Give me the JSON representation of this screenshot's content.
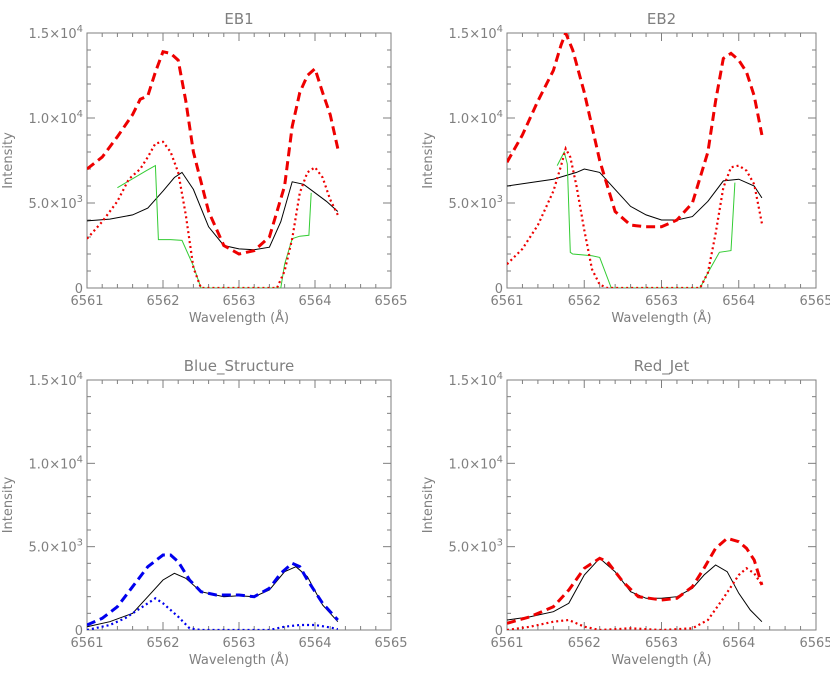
{
  "chart_data": [
    {
      "type": "line",
      "title": "EB1",
      "xlabel": "Wavelength (Å)",
      "ylabel": "Intensity",
      "xlim": [
        6561,
        6565
      ],
      "ylim": [
        0,
        15000
      ],
      "x_ticks": [
        "6561",
        "6562",
        "6563",
        "6564",
        "6565"
      ],
      "y_ticks": [
        {
          "value": 0,
          "mantissa": "0",
          "exponent": ""
        },
        {
          "value": 5000,
          "mantissa": "5.0×10",
          "exponent": "3"
        },
        {
          "value": 10000,
          "mantissa": "1.0×10",
          "exponent": "4"
        },
        {
          "value": 15000,
          "mantissa": "1.5×10",
          "exponent": "4"
        }
      ],
      "series": [
        {
          "style": "black-solid",
          "color": "#000000",
          "x": [
            6561.0,
            6561.3,
            6561.6,
            6561.8,
            6562.0,
            6562.15,
            6562.25,
            6562.4,
            6562.6,
            6562.8,
            6563.0,
            6563.2,
            6563.4,
            6563.55,
            6563.7,
            6563.85,
            6564.0,
            6564.15,
            6564.3
          ],
          "y": [
            3950,
            4050,
            4300,
            4700,
            5700,
            6500,
            6800,
            5800,
            3600,
            2500,
            2300,
            2250,
            2400,
            3900,
            6250,
            6100,
            5600,
            5100,
            4500
          ]
        },
        {
          "style": "green-solid",
          "color": "#33cc33",
          "x": [
            6561.4,
            6561.78,
            6561.9,
            6561.94,
            6561.97,
            6562.1,
            6562.25,
            6562.4,
            6562.5,
            6563.55,
            6563.6,
            6563.7,
            6563.8,
            6563.92,
            6563.95
          ],
          "y": [
            5900,
            6900,
            7200,
            2850,
            2850,
            2850,
            2800,
            1300,
            0,
            0,
            1400,
            2900,
            3050,
            3100,
            5600
          ]
        },
        {
          "style": "red-dashed",
          "color": "#ee0000",
          "x": [
            6561.0,
            6561.2,
            6561.4,
            6561.6,
            6561.7,
            6561.8,
            6561.9,
            6562.0,
            6562.1,
            6562.2,
            6562.3,
            6562.4,
            6562.6,
            6562.8,
            6563.0,
            6563.2,
            6563.4,
            6563.6,
            6563.7,
            6563.8,
            6563.9,
            6564.0,
            6564.1,
            6564.2,
            6564.3
          ],
          "y": [
            7000,
            7700,
            8900,
            10200,
            11100,
            11300,
            12700,
            13900,
            13800,
            13400,
            11000,
            8000,
            4500,
            2500,
            2000,
            2200,
            3000,
            6000,
            9500,
            11500,
            12500,
            12900,
            11500,
            10200,
            8200
          ]
        },
        {
          "style": "red-dotted",
          "color": "#ee0000",
          "x": [
            6561.0,
            6561.2,
            6561.4,
            6561.55,
            6561.7,
            6561.8,
            6561.9,
            6562.0,
            6562.1,
            6562.2,
            6562.3,
            6562.4,
            6562.5,
            6563.5,
            6563.6,
            6563.7,
            6563.8,
            6563.9,
            6564.0,
            6564.1,
            6564.2,
            6564.3
          ],
          "y": [
            2900,
            3900,
            5100,
            6400,
            7000,
            7700,
            8500,
            8600,
            8000,
            6800,
            4300,
            1200,
            0,
            0,
            1000,
            2900,
            5600,
            6800,
            7100,
            6500,
            5200,
            4300
          ]
        }
      ]
    },
    {
      "type": "line",
      "title": "EB2",
      "xlabel": "Wavelength (Å)",
      "ylabel": "Intensity",
      "xlim": [
        6561,
        6565
      ],
      "ylim": [
        0,
        15000
      ],
      "x_ticks": [
        "6561",
        "6562",
        "6563",
        "6564",
        "6565"
      ],
      "y_ticks": [
        {
          "value": 0,
          "mantissa": "0",
          "exponent": ""
        },
        {
          "value": 5000,
          "mantissa": "5.0×10",
          "exponent": "3"
        },
        {
          "value": 10000,
          "mantissa": "1.0×10",
          "exponent": "4"
        },
        {
          "value": 15000,
          "mantissa": "1.5×10",
          "exponent": "4"
        }
      ],
      "series": [
        {
          "style": "black-solid",
          "color": "#000000",
          "x": [
            6561.0,
            6561.3,
            6561.6,
            6561.9,
            6562.0,
            6562.2,
            6562.4,
            6562.6,
            6562.8,
            6563.0,
            6563.2,
            6563.4,
            6563.6,
            6563.8,
            6564.0,
            6564.2,
            6564.3
          ],
          "y": [
            6000,
            6200,
            6400,
            6800,
            7000,
            6800,
            5800,
            4800,
            4300,
            4000,
            4000,
            4200,
            5100,
            6300,
            6400,
            6000,
            5300
          ]
        },
        {
          "style": "green-solid",
          "color": "#33cc33",
          "x": [
            6561.65,
            6561.74,
            6561.78,
            6561.82,
            6561.85,
            6562.1,
            6562.2,
            6562.35,
            6563.5,
            6563.6,
            6563.75,
            6563.9,
            6563.95
          ],
          "y": [
            7200,
            8000,
            7300,
            2100,
            2000,
            1900,
            1800,
            0,
            0,
            900,
            2100,
            2200,
            6200
          ]
        },
        {
          "style": "red-dashed",
          "color": "#ee0000",
          "x": [
            6561.0,
            6561.2,
            6561.4,
            6561.6,
            6561.7,
            6561.76,
            6561.85,
            6562.0,
            6562.2,
            6562.4,
            6562.6,
            6562.8,
            6563.0,
            6563.2,
            6563.4,
            6563.6,
            6563.7,
            6563.8,
            6563.9,
            6564.0,
            6564.1,
            6564.2,
            6564.3
          ],
          "y": [
            7400,
            9000,
            11000,
            12800,
            14300,
            15000,
            14000,
            11500,
            7500,
            4500,
            3700,
            3600,
            3600,
            4000,
            5000,
            8000,
            11000,
            13500,
            13800,
            13400,
            12700,
            11300,
            9000
          ]
        },
        {
          "style": "red-dotted",
          "color": "#ee0000",
          "x": [
            6561.0,
            6561.2,
            6561.4,
            6561.6,
            6561.7,
            6561.76,
            6561.82,
            6561.9,
            6562.0,
            6562.1,
            6562.2,
            6562.3,
            6563.5,
            6563.6,
            6563.7,
            6563.8,
            6563.9,
            6564.0,
            6564.1,
            6564.2,
            6564.3
          ],
          "y": [
            1400,
            2300,
            3700,
            5700,
            7200,
            8200,
            7700,
            6000,
            3400,
            1100,
            200,
            0,
            0,
            900,
            3200,
            5900,
            7100,
            7200,
            6900,
            6100,
            3800
          ]
        }
      ]
    },
    {
      "type": "line",
      "title": "Blue_Structure",
      "xlabel": "Wavelength (Å)",
      "ylabel": "Intensity",
      "xlim": [
        6561,
        6565
      ],
      "ylim": [
        0,
        15000
      ],
      "x_ticks": [
        "6561",
        "6562",
        "6563",
        "6564",
        "6565"
      ],
      "y_ticks": [
        {
          "value": 0,
          "mantissa": "0",
          "exponent": ""
        },
        {
          "value": 5000,
          "mantissa": "5.0×10",
          "exponent": "3"
        },
        {
          "value": 10000,
          "mantissa": "1.0×10",
          "exponent": "4"
        },
        {
          "value": 15000,
          "mantissa": "1.5×10",
          "exponent": "4"
        }
      ],
      "series": [
        {
          "style": "black-solid",
          "color": "#000000",
          "x": [
            6561.0,
            6561.3,
            6561.6,
            6561.8,
            6562.0,
            6562.15,
            6562.3,
            6562.5,
            6562.8,
            6563.0,
            6563.2,
            6563.4,
            6563.6,
            6563.75,
            6563.9,
            6564.1,
            6564.3
          ],
          "y": [
            200,
            500,
            1000,
            2000,
            3000,
            3400,
            3100,
            2300,
            2000,
            2050,
            2000,
            2400,
            3500,
            3800,
            3200,
            1500,
            500
          ]
        },
        {
          "style": "blue-dashed",
          "color": "#0000ee",
          "x": [
            6561.0,
            6561.2,
            6561.4,
            6561.6,
            6561.8,
            6562.0,
            6562.1,
            6562.2,
            6562.35,
            6562.5,
            6562.7,
            6563.0,
            6563.2,
            6563.4,
            6563.55,
            6563.7,
            6563.8,
            6563.9,
            6564.1,
            6564.3
          ],
          "y": [
            300,
            700,
            1400,
            2600,
            3800,
            4500,
            4500,
            4100,
            3000,
            2300,
            2100,
            2100,
            2000,
            2500,
            3400,
            4000,
            3800,
            3000,
            1600,
            600
          ]
        },
        {
          "style": "blue-dotted",
          "color": "#0000ee",
          "x": [
            6561.0,
            6561.3,
            6561.5,
            6561.7,
            6561.9,
            6562.0,
            6562.2,
            6562.35,
            6562.5,
            6563.4,
            6563.6,
            6563.8,
            6564.0,
            6564.2,
            6564.3
          ],
          "y": [
            0,
            300,
            700,
            1300,
            1900,
            1600,
            800,
            100,
            0,
            0,
            200,
            300,
            300,
            150,
            50
          ]
        }
      ]
    },
    {
      "type": "line",
      "title": "Red_Jet",
      "xlabel": "Wavelength (Å)",
      "ylabel": "Intensity",
      "xlim": [
        6561,
        6565
      ],
      "ylim": [
        0,
        15000
      ],
      "x_ticks": [
        "6561",
        "6562",
        "6563",
        "6564",
        "6565"
      ],
      "y_ticks": [
        {
          "value": 0,
          "mantissa": "0",
          "exponent": ""
        },
        {
          "value": 5000,
          "mantissa": "5.0×10",
          "exponent": "3"
        },
        {
          "value": 10000,
          "mantissa": "1.0×10",
          "exponent": "4"
        },
        {
          "value": 15000,
          "mantissa": "1.5×10",
          "exponent": "4"
        }
      ],
      "series": [
        {
          "style": "black-solid",
          "color": "#000000",
          "x": [
            6561.0,
            6561.3,
            6561.6,
            6561.8,
            6562.0,
            6562.2,
            6562.4,
            6562.6,
            6562.8,
            6563.0,
            6563.2,
            6563.4,
            6563.55,
            6563.7,
            6563.85,
            6564.0,
            6564.15,
            6564.3
          ],
          "y": [
            600,
            800,
            1100,
            1600,
            3300,
            4300,
            3500,
            2300,
            1900,
            1900,
            2000,
            2500,
            3300,
            3900,
            3500,
            2200,
            1200,
            500
          ]
        },
        {
          "style": "red-dashed",
          "color": "#ee0000",
          "x": [
            6561.0,
            6561.3,
            6561.6,
            6561.8,
            6562.0,
            6562.2,
            6562.3,
            6562.5,
            6562.7,
            6563.0,
            6563.2,
            6563.4,
            6563.55,
            6563.7,
            6563.85,
            6564.0,
            6564.1,
            6564.2,
            6564.3
          ],
          "y": [
            400,
            800,
            1400,
            2400,
            3700,
            4300,
            4100,
            2900,
            2000,
            1800,
            1900,
            2600,
            3700,
            4900,
            5500,
            5300,
            4900,
            4200,
            2700
          ]
        },
        {
          "style": "red-dotted",
          "color": "#ee0000",
          "x": [
            6561.0,
            6561.3,
            6561.6,
            6561.8,
            6562.0,
            6562.2,
            6562.6,
            6563.0,
            6563.4,
            6563.6,
            6563.8,
            6564.0,
            6564.1,
            6564.2,
            6564.3
          ],
          "y": [
            0,
            200,
            500,
            600,
            200,
            0,
            100,
            0,
            100,
            600,
            1900,
            3300,
            3700,
            3400,
            2700
          ]
        }
      ]
    }
  ]
}
